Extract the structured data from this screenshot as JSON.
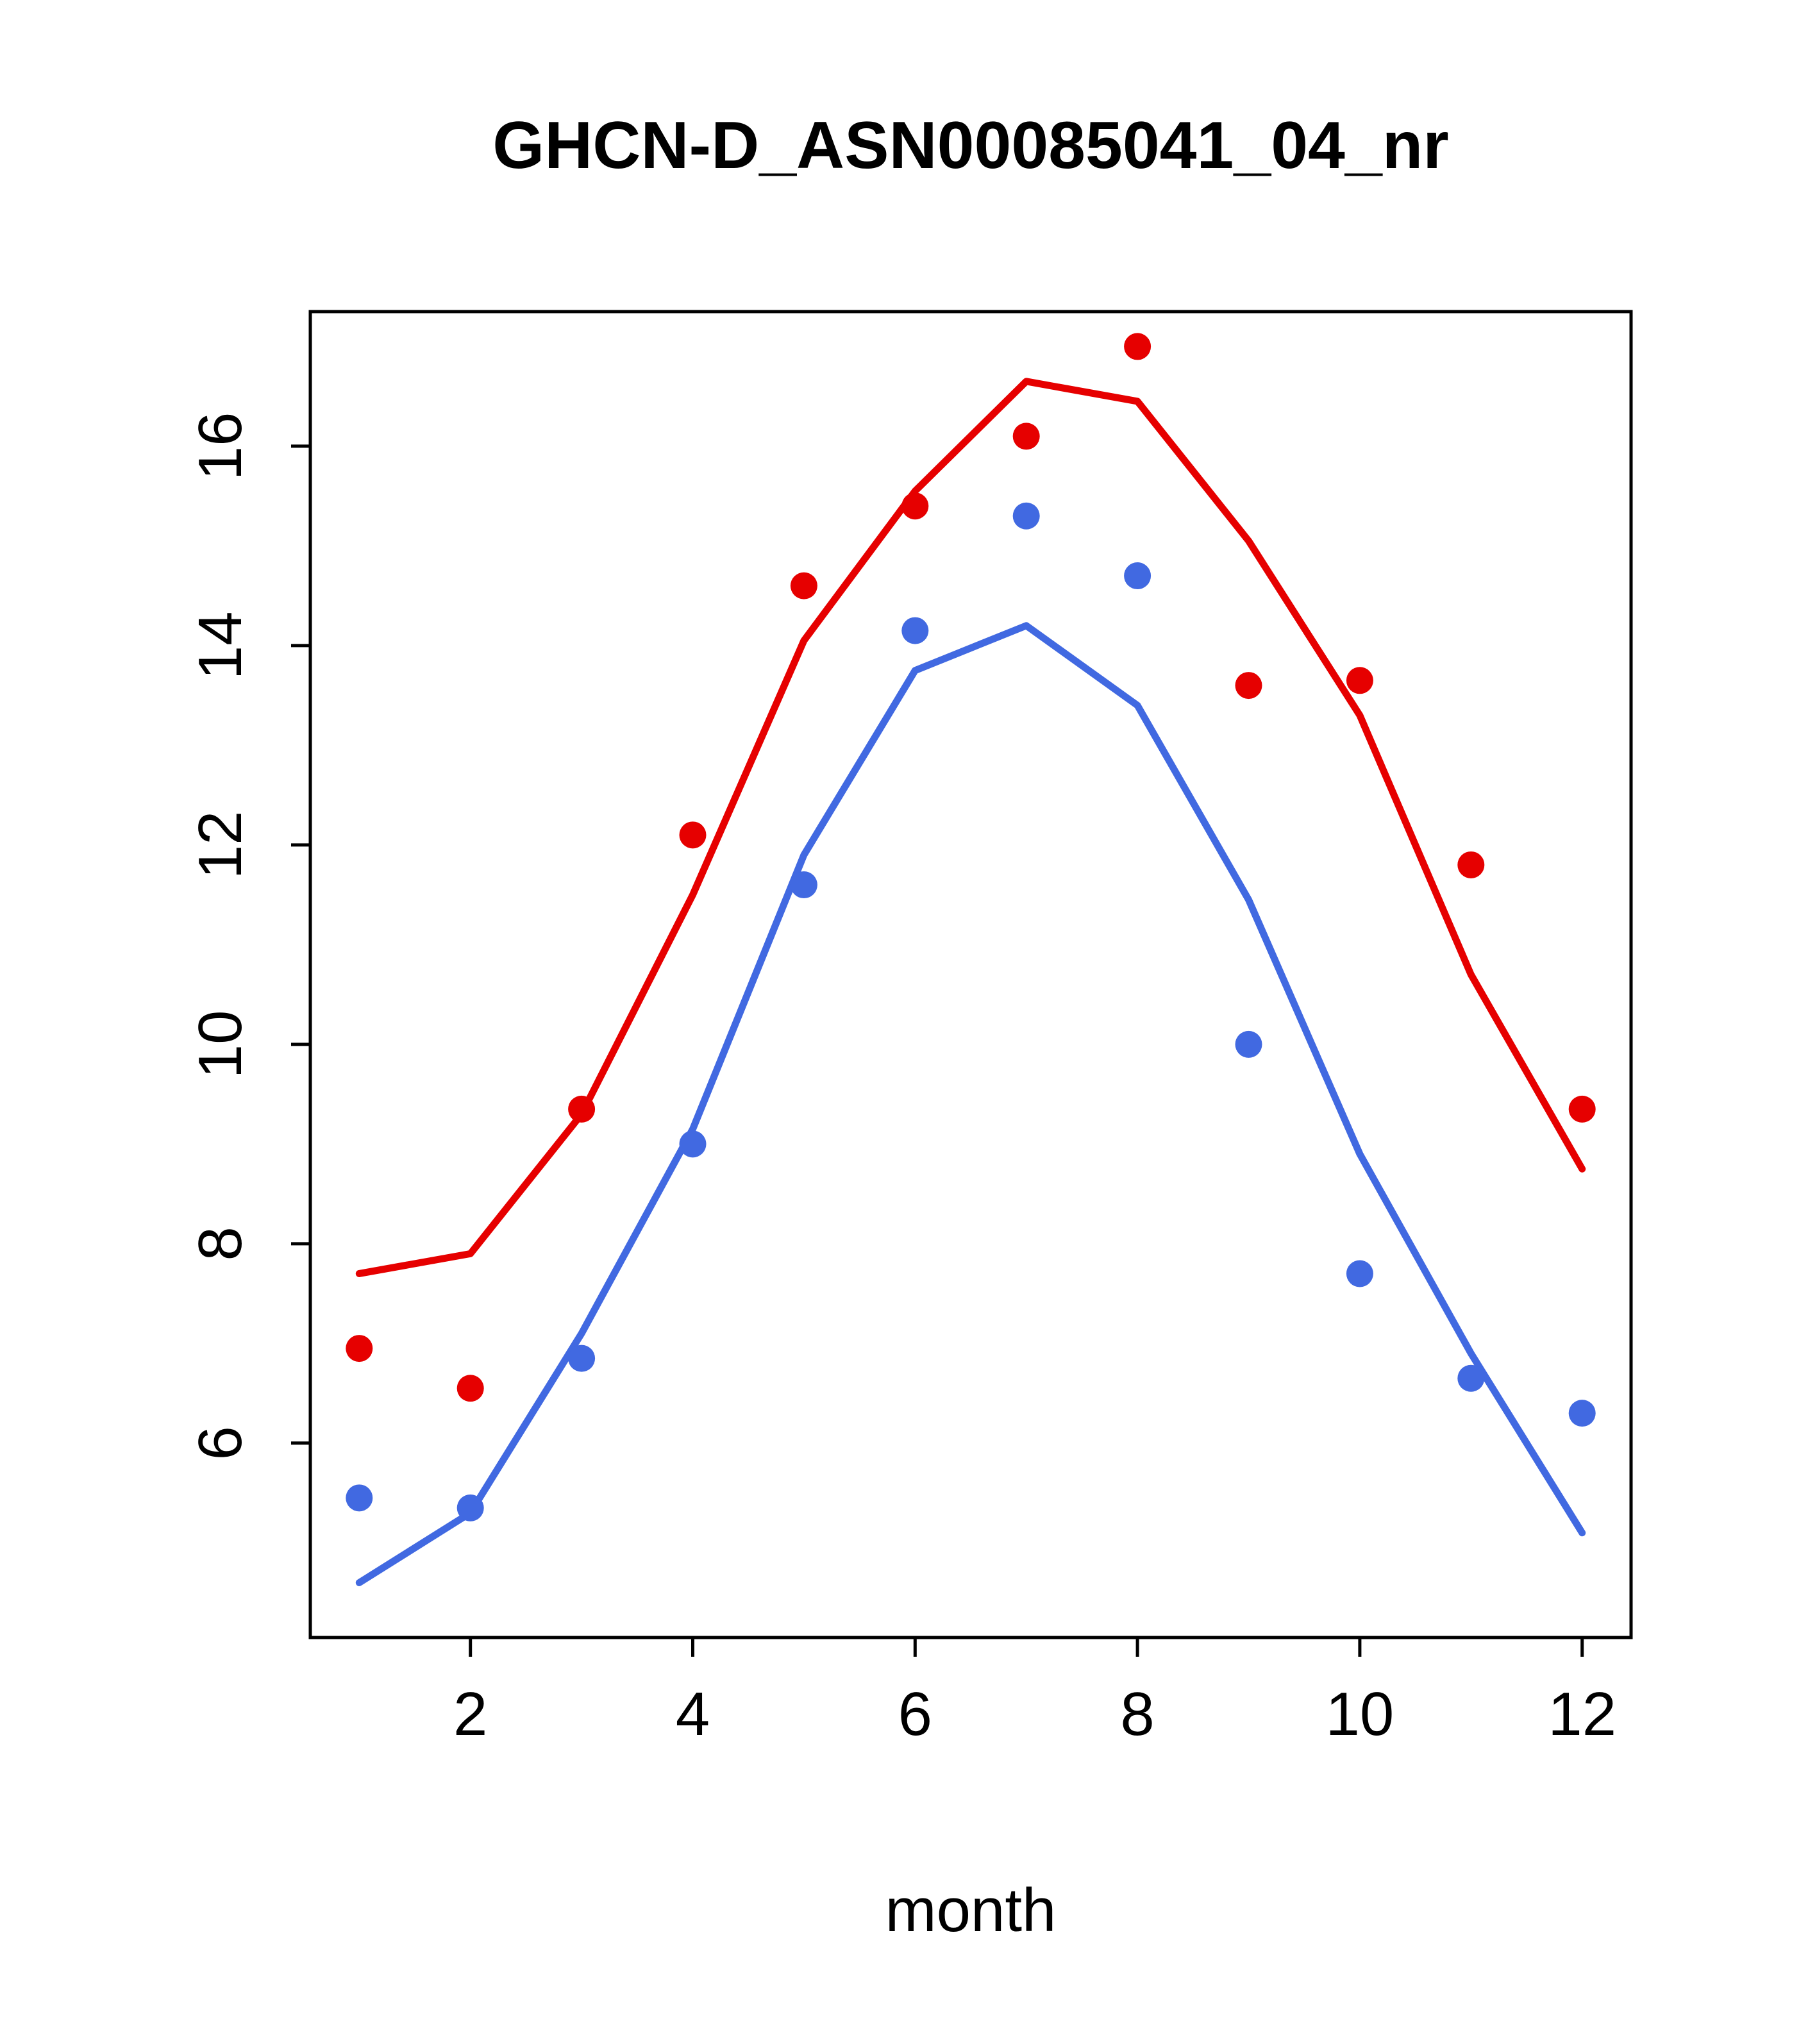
{
  "page": {
    "background": "#ffffff"
  },
  "chart_data": {
    "type": "line",
    "title": "GHCN-D_ASN00085041_04_nr",
    "xlabel": "month",
    "ylabel": "",
    "x": [
      1,
      2,
      3,
      4,
      5,
      6,
      7,
      8,
      9,
      10,
      11,
      12
    ],
    "xlim": [
      0.56,
      12.44
    ],
    "ylim": [
      4.05,
      17.35
    ],
    "xticks": [
      2,
      4,
      6,
      8,
      10,
      12
    ],
    "yticks": [
      6,
      8,
      10,
      12,
      14,
      16
    ],
    "grid": false,
    "legend": "none",
    "colors": {
      "red": "#e60000",
      "blue": "#4169e1",
      "axis": "#000000"
    },
    "series": [
      {
        "name": "red-curve",
        "kind": "line",
        "color": "#e60000",
        "values": [
          7.7,
          7.9,
          9.3,
          11.5,
          14.05,
          15.55,
          16.65,
          16.45,
          15.05,
          13.3,
          10.7,
          8.75
        ]
      },
      {
        "name": "red-observations",
        "kind": "scatter",
        "color": "#e60000",
        "values": [
          6.95,
          6.55,
          9.35,
          12.1,
          14.6,
          15.4,
          16.1,
          17.0,
          13.6,
          13.65,
          11.8,
          9.35
        ]
      },
      {
        "name": "blue-curve",
        "kind": "line",
        "color": "#4169e1",
        "values": [
          4.6,
          5.3,
          7.1,
          9.15,
          11.9,
          13.75,
          14.2,
          13.4,
          11.45,
          8.9,
          6.9,
          5.1
        ]
      },
      {
        "name": "blue-observations",
        "kind": "scatter",
        "color": "#4169e1",
        "values": [
          5.45,
          5.35,
          6.85,
          9.0,
          11.6,
          14.15,
          15.3,
          14.7,
          10.0,
          7.7,
          6.65,
          6.3
        ]
      }
    ]
  }
}
